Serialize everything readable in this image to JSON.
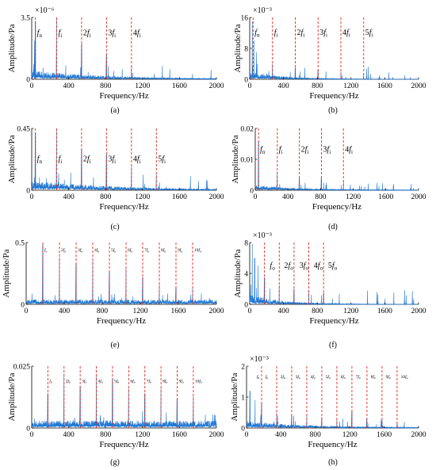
{
  "colors": {
    "signal": "#1f77d4",
    "marker": "#e8261c",
    "axis": "#000000"
  },
  "chart_data": [
    {
      "id": "a",
      "type": "line",
      "caption": "(a)",
      "xlabel": "Frequency/Hz",
      "ylabel": "Amplitude/Pa",
      "xlim": [
        0,
        2000
      ],
      "xticks": [
        "0",
        "400",
        "800",
        "1200",
        "1600",
        "2000"
      ],
      "ylim": [
        0,
        3.5
      ],
      "yticks": [
        "0",
        "3.5"
      ],
      "ymult": "×10⁻⁶",
      "markers": [
        {
          "x": 40
        },
        {
          "x": 270
        },
        {
          "x": 540
        },
        {
          "x": 810
        },
        {
          "x": 1080
        }
      ],
      "labels": [
        {
          "x": 40,
          "text": "fn",
          "y": 2.5
        },
        {
          "x": 270,
          "text": "fi",
          "y": 2.5
        },
        {
          "x": 540,
          "text": "2fi",
          "y": 2.5
        },
        {
          "x": 810,
          "text": "3fi",
          "y": 2.5
        },
        {
          "x": 1080,
          "text": "4fi",
          "y": 2.5
        }
      ],
      "series": [
        {
          "values": [
            [
              30,
              2.2
            ],
            [
              40,
              3.3
            ],
            [
              270,
              3.5
            ],
            [
              540,
              2.0
            ],
            [
              810,
              1.4
            ],
            [
              1080,
              0.8
            ]
          ],
          "noise": 0.5,
          "decay": 0.0011
        }
      ]
    },
    {
      "id": "b",
      "type": "line",
      "caption": "(b)",
      "xlabel": "Frequency/Hz",
      "ylabel": "Amplitude/Pa",
      "xlim": [
        0,
        2000
      ],
      "xticks": [
        "0",
        "400",
        "800",
        "1200",
        "1600",
        "2000"
      ],
      "ylim": [
        0,
        16
      ],
      "yticks": [
        "0",
        "8",
        "16"
      ],
      "ymult": "×10⁻³",
      "markers": [
        {
          "x": 40
        },
        {
          "x": 270
        },
        {
          "x": 540
        },
        {
          "x": 810
        },
        {
          "x": 1080
        },
        {
          "x": 1350
        }
      ],
      "labels": [
        {
          "x": 40,
          "text": "fn",
          "y": 11.5
        },
        {
          "x": 270,
          "text": "fi",
          "y": 11.5
        },
        {
          "x": 540,
          "text": "2fi",
          "y": 11.5
        },
        {
          "x": 810,
          "text": "3fi",
          "y": 11.5
        },
        {
          "x": 1080,
          "text": "4fi",
          "y": 11.5
        },
        {
          "x": 1350,
          "text": "5fi",
          "y": 11.5
        }
      ],
      "series": [
        {
          "values": [
            [
              30,
              15
            ],
            [
              50,
              10
            ],
            [
              80,
              7
            ],
            [
              270,
              4
            ],
            [
              540,
              3
            ],
            [
              810,
              2.5
            ],
            [
              1080,
              2
            ],
            [
              1350,
              1.5
            ]
          ],
          "noise": 2.2,
          "decay": 0.0025
        }
      ]
    },
    {
      "id": "c",
      "type": "line",
      "caption": "(c)",
      "xlabel": "Frequency/Hz",
      "ylabel": "Amplitude/Pa",
      "xlim": [
        0,
        2000
      ],
      "xticks": [
        "0",
        "400",
        "800",
        "1200",
        "1600",
        "2000"
      ],
      "ylim": [
        0,
        0.45
      ],
      "yticks": [
        "0",
        "0.45"
      ],
      "ymult": "",
      "markers": [
        {
          "x": 40
        },
        {
          "x": 270
        },
        {
          "x": 540
        },
        {
          "x": 810
        },
        {
          "x": 1080
        },
        {
          "x": 1350
        }
      ],
      "labels": [
        {
          "x": 40,
          "text": "fn",
          "y": 0.21
        },
        {
          "x": 270,
          "text": "fi",
          "y": 0.21
        },
        {
          "x": 540,
          "text": "2fi",
          "y": 0.21
        },
        {
          "x": 810,
          "text": "3fi",
          "y": 0.21
        },
        {
          "x": 1080,
          "text": "4fi",
          "y": 0.21
        },
        {
          "x": 1350,
          "text": "5fi",
          "y": 0.21
        }
      ],
      "series": [
        {
          "values": [
            [
              40,
              0.42
            ],
            [
              270,
              0.44
            ],
            [
              540,
              0.3
            ],
            [
              810,
              0.26
            ],
            [
              1080,
              0.18
            ],
            [
              1350,
              0.12
            ]
          ],
          "noise": 0.07,
          "decay": 0.001
        }
      ]
    },
    {
      "id": "d",
      "type": "line",
      "caption": "(d)",
      "xlabel": "Frequency/Hz",
      "ylabel": "Amplitude/Pa",
      "xlim": [
        0,
        2000
      ],
      "xticks": [
        "0",
        "400",
        "800",
        "1200",
        "1600",
        "2000"
      ],
      "ylim": [
        0,
        0.02
      ],
      "yticks": [
        "0",
        "0.01",
        "0.02"
      ],
      "ymult": "",
      "markers": [
        {
          "x": 40
        },
        {
          "x": 270
        },
        {
          "x": 540
        },
        {
          "x": 810
        },
        {
          "x": 1080
        }
      ],
      "labels": [
        {
          "x": 40,
          "text": "fn",
          "y": 0.0125
        },
        {
          "x": 270,
          "text": "fi",
          "y": 0.0125
        },
        {
          "x": 540,
          "text": "2fi",
          "y": 0.0125
        },
        {
          "x": 810,
          "text": "3fi",
          "y": 0.0125
        },
        {
          "x": 1080,
          "text": "4fi",
          "y": 0.0125
        }
      ],
      "series": [
        {
          "values": [
            [
              40,
              0.016
            ],
            [
              270,
              0.006
            ],
            [
              540,
              0.004
            ],
            [
              810,
              0.004
            ],
            [
              1080,
              0.003
            ]
          ],
          "noise": 0.0016,
          "decay": 0.0015
        }
      ]
    },
    {
      "id": "e",
      "type": "line",
      "caption": "(e)",
      "xlabel": "Frequency/Hz",
      "ylabel": "Amplitude/Pa",
      "xlim": [
        0,
        2000
      ],
      "xticks": [
        "0",
        "400",
        "800",
        "1200",
        "1600",
        "2000"
      ],
      "ylim": [
        0,
        0.5
      ],
      "yticks": [
        "0",
        "0.5"
      ],
      "ymult": "",
      "markers": [
        {
          "x": 175
        },
        {
          "x": 350
        },
        {
          "x": 525
        },
        {
          "x": 700
        },
        {
          "x": 875
        },
        {
          "x": 1050
        },
        {
          "x": 1225
        },
        {
          "x": 1400
        },
        {
          "x": 1575
        },
        {
          "x": 1750
        }
      ],
      "labels": [
        {
          "x": 175,
          "text": "fo",
          "y": 0.43
        },
        {
          "x": 350,
          "text": "2fo",
          "y": 0.43
        },
        {
          "x": 525,
          "text": "3fo",
          "y": 0.43
        },
        {
          "x": 700,
          "text": "4fo",
          "y": 0.43
        },
        {
          "x": 875,
          "text": "5fo",
          "y": 0.43
        },
        {
          "x": 1050,
          "text": "6fo",
          "y": 0.43
        },
        {
          "x": 1225,
          "text": "7fo",
          "y": 0.43
        },
        {
          "x": 1400,
          "text": "8fo",
          "y": 0.43
        },
        {
          "x": 1575,
          "text": "9fo",
          "y": 0.43
        },
        {
          "x": 1750,
          "text": "10fo",
          "y": 0.43
        }
      ],
      "series": [
        {
          "values": [
            [
              175,
              0.48
            ],
            [
              350,
              0.38
            ],
            [
              525,
              0.33
            ],
            [
              700,
              0.35
            ],
            [
              875,
              0.26
            ],
            [
              1050,
              0.3
            ],
            [
              1225,
              0.22
            ],
            [
              1400,
              0.16
            ],
            [
              1575,
              0.14
            ],
            [
              1750,
              0.13
            ]
          ],
          "noise": 0.04,
          "decay": 0.0
        }
      ]
    },
    {
      "id": "f",
      "type": "line",
      "caption": "(f)",
      "xlabel": "Frequency/Hz",
      "ylabel": "Amplitude/Pa",
      "xlim": [
        0,
        2000
      ],
      "xticks": [
        "0",
        "400",
        "800",
        "1200",
        "1600",
        "2000"
      ],
      "ylim": [
        0,
        8
      ],
      "yticks": [
        "0",
        "4",
        "8"
      ],
      "ymult": "×10⁻³",
      "markers": [
        {
          "x": 175
        },
        {
          "x": 350
        },
        {
          "x": 525
        },
        {
          "x": 700
        },
        {
          "x": 875
        }
      ],
      "labels": [
        {
          "x": 220,
          "text": "fo",
          "y": 4.7
        },
        {
          "x": 390,
          "text": "2fo",
          "y": 4.7
        },
        {
          "x": 570,
          "text": "3fo",
          "y": 4.7
        },
        {
          "x": 740,
          "text": "4fo",
          "y": 4.7
        },
        {
          "x": 910,
          "text": "5fo",
          "y": 4.7
        }
      ],
      "series": [
        {
          "values": [
            [
              30,
              7.8
            ],
            [
              60,
              6
            ],
            [
              100,
              5
            ],
            [
              175,
              3.5
            ],
            [
              350,
              2.5
            ],
            [
              525,
              2
            ],
            [
              700,
              1.8
            ],
            [
              875,
              1.5
            ]
          ],
          "noise": 1.3,
          "decay": 0.0025
        }
      ]
    },
    {
      "id": "g",
      "type": "line",
      "caption": "(g)",
      "xlabel": "Frequency/Hz",
      "ylabel": "Amplitude/Pa",
      "xlim": [
        0,
        2000
      ],
      "xticks": [
        "0",
        "400",
        "800",
        "1200",
        "1600",
        "2000"
      ],
      "ylim": [
        0,
        0.025
      ],
      "yticks": [
        "0",
        "0.025"
      ],
      "ymult": "",
      "markers": [
        {
          "x": 175
        },
        {
          "x": 350
        },
        {
          "x": 525
        },
        {
          "x": 700
        },
        {
          "x": 875
        },
        {
          "x": 1050
        },
        {
          "x": 1225
        },
        {
          "x": 1400
        },
        {
          "x": 1575
        },
        {
          "x": 1750
        }
      ],
      "labels": [
        {
          "x": 175,
          "text": "fo",
          "y": 0.0185
        },
        {
          "x": 350,
          "text": "2fo",
          "y": 0.0185
        },
        {
          "x": 525,
          "text": "3fo",
          "y": 0.0185
        },
        {
          "x": 700,
          "text": "4fo",
          "y": 0.0185
        },
        {
          "x": 875,
          "text": "5fo",
          "y": 0.0185
        },
        {
          "x": 1050,
          "text": "6fo",
          "y": 0.0185
        },
        {
          "x": 1225,
          "text": "7fo",
          "y": 0.0185
        },
        {
          "x": 1400,
          "text": "8fo",
          "y": 0.0185
        },
        {
          "x": 1575,
          "text": "9fo",
          "y": 0.0185
        },
        {
          "x": 1750,
          "text": "10fo",
          "y": 0.0185
        }
      ],
      "series": [
        {
          "values": [
            [
              175,
              0.014
            ],
            [
              350,
              0.022
            ],
            [
              525,
              0.017
            ],
            [
              700,
              0.021
            ],
            [
              875,
              0.02
            ],
            [
              1050,
              0.016
            ],
            [
              1225,
              0.014
            ],
            [
              1400,
              0.016
            ],
            [
              1575,
              0.012
            ],
            [
              1750,
              0.013
            ]
          ],
          "noise": 0.003,
          "decay": 0.0
        }
      ]
    },
    {
      "id": "h",
      "type": "line",
      "caption": "(h)",
      "xlabel": "Frequency/Hz",
      "ylabel": "Amplitude/Pa",
      "xlim": [
        0,
        2000
      ],
      "xticks": [
        "0",
        "400",
        "800",
        "1200",
        "1600",
        "2000"
      ],
      "ylim": [
        0,
        2
      ],
      "yticks": [
        "0",
        "1",
        "2"
      ],
      "ymult": "×10⁻³",
      "markers": [
        {
          "x": 175
        },
        {
          "x": 350
        },
        {
          "x": 525
        },
        {
          "x": 700
        },
        {
          "x": 875
        },
        {
          "x": 1050
        },
        {
          "x": 1225
        },
        {
          "x": 1400
        },
        {
          "x": 1575
        },
        {
          "x": 1750
        }
      ],
      "labels": [
        {
          "x": 100,
          "text": "fn",
          "y": 1.62
        },
        {
          "x": 200,
          "text": "fo",
          "y": 1.62
        },
        {
          "x": 375,
          "text": "2fo",
          "y": 1.62
        },
        {
          "x": 550,
          "text": "3fo",
          "y": 1.62
        },
        {
          "x": 725,
          "text": "4fo",
          "y": 1.62
        },
        {
          "x": 900,
          "text": "5fo",
          "y": 1.62
        },
        {
          "x": 1075,
          "text": "6fo",
          "y": 1.62
        },
        {
          "x": 1250,
          "text": "7fo",
          "y": 1.62
        },
        {
          "x": 1425,
          "text": "8fo",
          "y": 1.62
        },
        {
          "x": 1600,
          "text": "9fo",
          "y": 1.62
        },
        {
          "x": 1775,
          "text": "10fo",
          "y": 1.62
        }
      ],
      "series": [
        {
          "values": [
            [
              40,
              1.2
            ],
            [
              100,
              0.9
            ],
            [
              175,
              0.8
            ],
            [
              350,
              0.5
            ],
            [
              525,
              0.4
            ],
            [
              700,
              0.45
            ],
            [
              875,
              0.35
            ],
            [
              1050,
              0.3
            ],
            [
              1225,
              0.55
            ],
            [
              1400,
              0.3
            ],
            [
              1575,
              0.25
            ],
            [
              1750,
              0.2
            ]
          ],
          "noise": 0.22,
          "decay": 0.0012
        }
      ]
    }
  ]
}
